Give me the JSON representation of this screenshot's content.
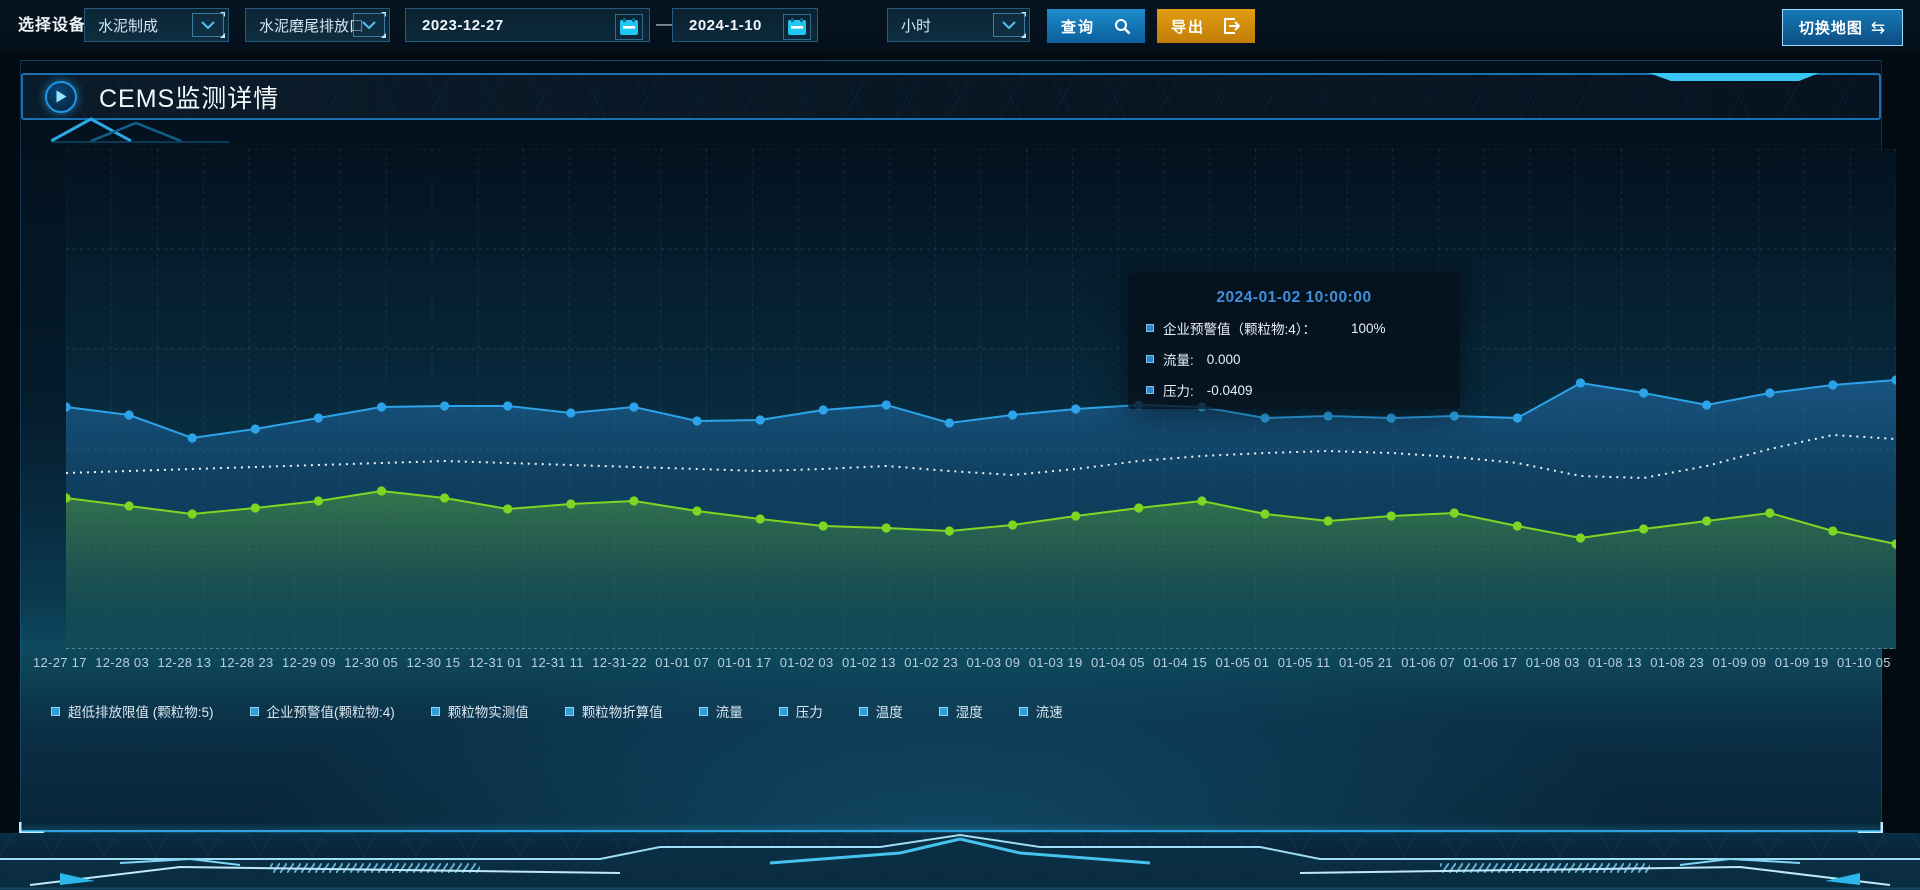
{
  "toolbar": {
    "device_label": "选择设备",
    "device_select": {
      "value": "水泥制成"
    },
    "outlet_select": {
      "value": "水泥磨尾排放口"
    },
    "date_start": "2023-12-27",
    "date_separator": "—",
    "date_end": "2024-1-10",
    "interval_select": {
      "value": "小时"
    },
    "query_button": "查询",
    "export_button": "导出",
    "switch_map_button": "切换地图",
    "swap_icon_glyph": "⇆"
  },
  "panel": {
    "title": "CEMS监测详情"
  },
  "tooltip": {
    "timestamp": "2024-01-02 10:00:00",
    "items": [
      {
        "label": "企业预警值（颗粒物:4）：",
        "value": "100%"
      },
      {
        "label": "流量:",
        "value": "0.000"
      },
      {
        "label": "压力:",
        "value": "-0.0409"
      }
    ]
  },
  "legend": {
    "marker_color": "#2e9fd8",
    "items": [
      "超低排放限值 (颗粒物:5)",
      "企业预警值(颗粒物:4)",
      "颗粒物实测值",
      "颗粒物折算值",
      "流量",
      "压力",
      "温度",
      "湿度",
      "流速"
    ]
  },
  "chart_data": {
    "type": "line",
    "title": "",
    "xlabel": "",
    "ylabel": "",
    "y_axis_labels_visible": false,
    "grid": true,
    "legend_position": "bottom",
    "ylim": [
      0,
      100
    ],
    "x": [
      "12-27 17",
      "12-28 03",
      "12-28 13",
      "12-28 23",
      "12-29 09",
      "12-30 05",
      "12-30 15",
      "12-31 01",
      "12-31 11",
      "12-31-22",
      "01-01 07",
      "01-01 17",
      "01-02 03",
      "01-02 13",
      "01-02 23",
      "01-03 09",
      "01-03 19",
      "01-04 05",
      "01-04 15",
      "01-05 01",
      "01-05 11",
      "01-05 21",
      "01-06 07",
      "01-06 17",
      "01-08 03",
      "01-08 13",
      "01-08 23",
      "01-09 09",
      "01-09 19",
      "01-10 05"
    ],
    "series": [
      {
        "name": "流量",
        "color": "#2da4ea",
        "style": "solid-dots",
        "area": true,
        "values": [
          48.4,
          46.8,
          42.2,
          44.0,
          46.2,
          48.4,
          48.6,
          48.6,
          47.2,
          48.4,
          45.6,
          45.8,
          47.8,
          48.8,
          45.2,
          46.8,
          48.0,
          48.8,
          48.4,
          46.2,
          46.6,
          46.2,
          46.6,
          46.2,
          53.2,
          51.2,
          48.8,
          51.2,
          52.8,
          53.8
        ]
      },
      {
        "name": "颗粒物折算值",
        "color": "#e9f2f7",
        "style": "dotted",
        "area": false,
        "values": [
          35.2,
          35.6,
          36.0,
          36.4,
          36.8,
          37.2,
          37.6,
          37.2,
          36.8,
          36.4,
          36.0,
          35.6,
          36.0,
          36.6,
          35.6,
          34.8,
          36.0,
          37.6,
          38.6,
          39.2,
          39.6,
          39.2,
          38.4,
          37.2,
          34.6,
          34.2,
          36.6,
          40.0,
          42.8,
          42.0
        ]
      },
      {
        "name": "颗粒物实测值",
        "color": "#7fd622",
        "style": "solid-dots",
        "area": true,
        "values": [
          30.2,
          28.6,
          27.0,
          28.2,
          29.6,
          31.6,
          30.2,
          28.0,
          29.0,
          29.6,
          27.6,
          26.0,
          24.6,
          24.2,
          23.6,
          24.8,
          26.6,
          28.2,
          29.6,
          27.0,
          25.6,
          26.6,
          27.2,
          24.6,
          22.2,
          24.0,
          25.6,
          27.2,
          23.6,
          21.0
        ]
      }
    ]
  }
}
